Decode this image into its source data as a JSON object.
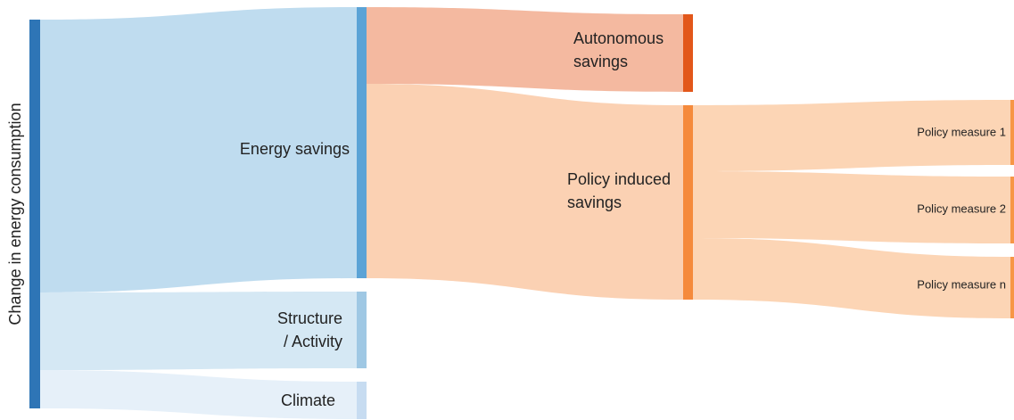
{
  "axis_label": "Change in energy consumption",
  "nodes": [
    {
      "lines": [
        "Energy savings"
      ]
    },
    {
      "lines": [
        "Structure",
        "/ Activity"
      ]
    },
    {
      "lines": [
        "Climate"
      ]
    },
    {
      "lines": [
        "Autonomous",
        "savings"
      ]
    },
    {
      "lines": [
        "Policy induced",
        "savings"
      ]
    },
    {
      "lines": [
        "Policy measure 1"
      ]
    },
    {
      "lines": [
        "Policy measure 2"
      ]
    },
    {
      "lines": [
        "Policy measure n"
      ]
    }
  ]
}
